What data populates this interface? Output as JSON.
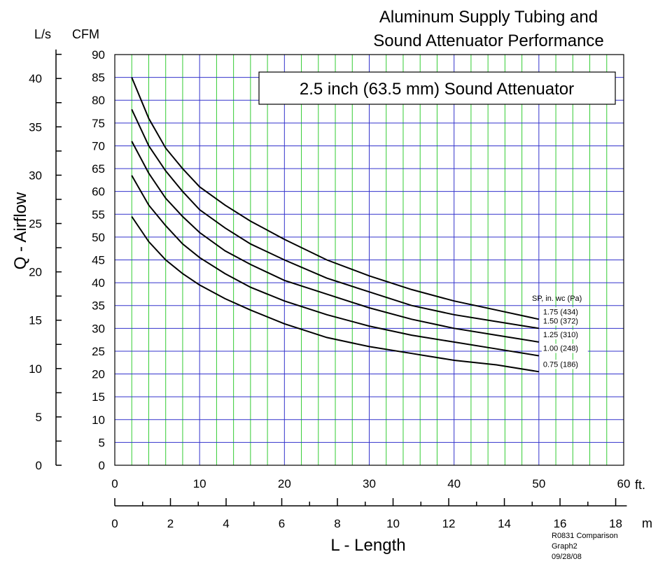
{
  "chart_data": {
    "type": "line",
    "title": "Aluminum Supply Tubing and Sound Attenuator Performance",
    "title_lines": [
      "Aluminum Supply Tubing and",
      "Sound Attenuator Performance"
    ],
    "box_label": "2.5 inch (63.5 mm) Sound Attenuator",
    "xlabel": "L - Length",
    "ylabel": "Q - Airflow",
    "x_unit_primary": "ft.",
    "x_unit_secondary": "m",
    "y_unit_primary": "CFM",
    "y_unit_secondary": "L/s",
    "xlim": [
      0,
      60
    ],
    "ylim": [
      0,
      90
    ],
    "x_ticks": [
      0,
      10,
      20,
      30,
      40,
      50,
      60
    ],
    "y_ticks": [
      0,
      5,
      10,
      15,
      20,
      25,
      30,
      35,
      40,
      45,
      50,
      55,
      60,
      65,
      70,
      75,
      80,
      85,
      90
    ],
    "m_ticks": [
      0,
      2,
      4,
      6,
      8,
      10,
      12,
      14,
      16,
      18
    ],
    "ls_ticks": [
      0,
      5,
      10,
      15,
      20,
      25,
      30,
      35,
      40
    ],
    "grid": true,
    "legend_title": "SP, in. wc (Pa)",
    "legend_placement": "right-end-of-lines",
    "colors": {
      "major_grid": "#3333cc",
      "minor_grid": "#33cc33",
      "line": "#000000"
    },
    "series": [
      {
        "name": "1.75 (434)",
        "points": [
          [
            2,
            85
          ],
          [
            4,
            76
          ],
          [
            6,
            69.5
          ],
          [
            8,
            65
          ],
          [
            10,
            61
          ],
          [
            13,
            57
          ],
          [
            16,
            53.5
          ],
          [
            20,
            49.5
          ],
          [
            25,
            45
          ],
          [
            30,
            41.5
          ],
          [
            35,
            38.5
          ],
          [
            40,
            36
          ],
          [
            45,
            34
          ],
          [
            50,
            32
          ]
        ]
      },
      {
        "name": "1.50 (372)",
        "points": [
          [
            2,
            78
          ],
          [
            4,
            70
          ],
          [
            6,
            64.5
          ],
          [
            8,
            60
          ],
          [
            10,
            56
          ],
          [
            13,
            52
          ],
          [
            16,
            48.5
          ],
          [
            20,
            45
          ],
          [
            25,
            41
          ],
          [
            30,
            38
          ],
          [
            35,
            35
          ],
          [
            40,
            33
          ],
          [
            45,
            31.5
          ],
          [
            50,
            30
          ]
        ]
      },
      {
        "name": "1.25 (310)",
        "points": [
          [
            2,
            71
          ],
          [
            4,
            64
          ],
          [
            6,
            58.5
          ],
          [
            8,
            54.5
          ],
          [
            10,
            51
          ],
          [
            13,
            47
          ],
          [
            16,
            44
          ],
          [
            20,
            40.5
          ],
          [
            25,
            37.5
          ],
          [
            30,
            34.5
          ],
          [
            35,
            32
          ],
          [
            40,
            30
          ],
          [
            45,
            28.5
          ],
          [
            50,
            27
          ]
        ]
      },
      {
        "name": "1.00 (248)",
        "points": [
          [
            2,
            63.5
          ],
          [
            4,
            57
          ],
          [
            6,
            52.5
          ],
          [
            8,
            48.5
          ],
          [
            10,
            45.5
          ],
          [
            13,
            42
          ],
          [
            16,
            39
          ],
          [
            20,
            36
          ],
          [
            25,
            33
          ],
          [
            30,
            30.5
          ],
          [
            35,
            28.5
          ],
          [
            40,
            27
          ],
          [
            45,
            25.5
          ],
          [
            50,
            24
          ]
        ]
      },
      {
        "name": "0.75 (186)",
        "points": [
          [
            2,
            54.5
          ],
          [
            4,
            49
          ],
          [
            6,
            45
          ],
          [
            8,
            42
          ],
          [
            10,
            39.5
          ],
          [
            13,
            36.5
          ],
          [
            16,
            34
          ],
          [
            20,
            31
          ],
          [
            25,
            28
          ],
          [
            30,
            26
          ],
          [
            35,
            24.5
          ],
          [
            40,
            23
          ],
          [
            45,
            22
          ],
          [
            50,
            20.5
          ]
        ]
      }
    ],
    "footnote": [
      "R0831 Comparison",
      "Graph2",
      "09/28/08"
    ]
  }
}
